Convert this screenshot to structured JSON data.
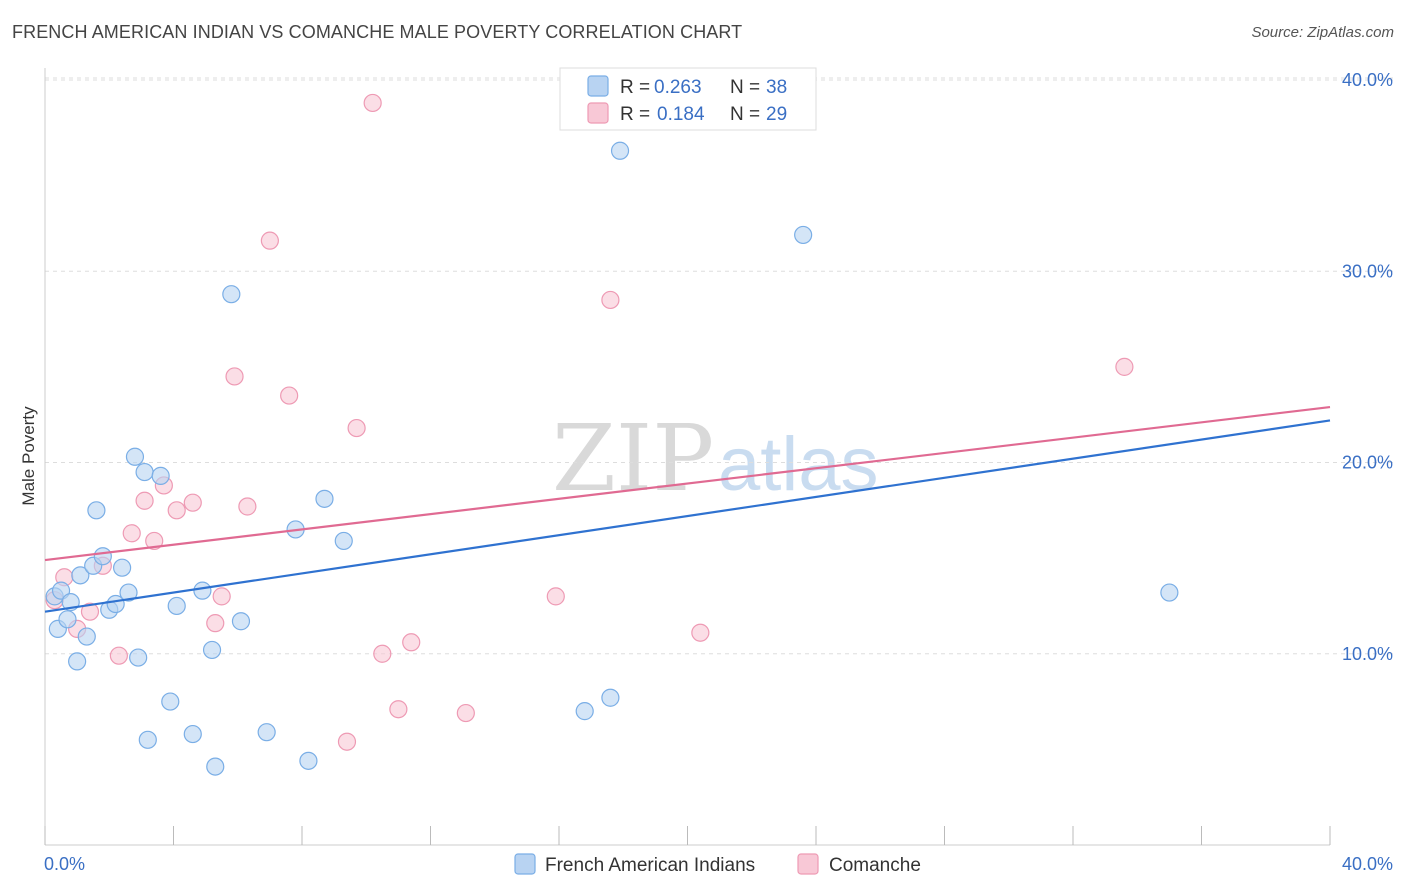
{
  "header": {
    "title": "FRENCH AMERICAN INDIAN VS COMANCHE MALE POVERTY CORRELATION CHART",
    "source": "Source: ZipAtlas.com"
  },
  "legend": {
    "series1": {
      "r_label": "R =",
      "r_value": "0.263",
      "n_label": "N =",
      "n_value": "38"
    },
    "series2": {
      "r_label": "R =",
      "r_value": "0.184",
      "n_label": "N =",
      "n_value": "29"
    }
  },
  "watermark": {
    "zip": "ZIP",
    "atlas": "atlas"
  },
  "colors": {
    "series1_fill": "#b8d3f2",
    "series1_stroke": "#7aaee6",
    "series1_line": "#2f72d0",
    "series2_fill": "#f8c8d6",
    "series2_stroke": "#ee9ab4",
    "series2_line": "#e06a92",
    "grid": "#dddddd",
    "axis_text": "#3a6fc4"
  },
  "chart_data": {
    "type": "scatter",
    "title": "FRENCH AMERICAN INDIAN VS COMANCHE MALE POVERTY CORRELATION CHART",
    "xlabel": "",
    "ylabel": "Male Poverty",
    "xlim": [
      0,
      40
    ],
    "ylim": [
      0,
      40
    ],
    "x_tick_labels": [
      "0.0%",
      "40.0%"
    ],
    "y_ticks": [
      10,
      20,
      30,
      40
    ],
    "y_tick_labels": [
      "10.0%",
      "20.0%",
      "30.0%",
      "40.0%"
    ],
    "grid": true,
    "series": [
      {
        "name": "French American Indians",
        "r": 0.263,
        "n": 38,
        "trend": {
          "x": [
            0,
            40
          ],
          "y": [
            12.2,
            22.2
          ]
        },
        "points": [
          [
            0.3,
            13.0
          ],
          [
            0.4,
            11.3
          ],
          [
            0.5,
            13.3
          ],
          [
            0.7,
            11.8
          ],
          [
            0.8,
            12.7
          ],
          [
            1.0,
            9.6
          ],
          [
            1.1,
            14.1
          ],
          [
            1.3,
            10.9
          ],
          [
            1.5,
            14.6
          ],
          [
            1.6,
            17.5
          ],
          [
            1.8,
            15.1
          ],
          [
            2.0,
            12.3
          ],
          [
            2.2,
            12.6
          ],
          [
            2.4,
            14.5
          ],
          [
            2.6,
            13.2
          ],
          [
            2.8,
            20.3
          ],
          [
            2.9,
            9.8
          ],
          [
            3.1,
            19.5
          ],
          [
            3.2,
            5.5
          ],
          [
            3.6,
            19.3
          ],
          [
            3.9,
            7.5
          ],
          [
            4.1,
            12.5
          ],
          [
            4.6,
            5.8
          ],
          [
            4.9,
            13.3
          ],
          [
            5.2,
            10.2
          ],
          [
            5.3,
            4.1
          ],
          [
            5.8,
            28.8
          ],
          [
            6.1,
            11.7
          ],
          [
            6.9,
            5.9
          ],
          [
            7.8,
            16.5
          ],
          [
            8.2,
            4.4
          ],
          [
            8.7,
            18.1
          ],
          [
            9.3,
            15.9
          ],
          [
            16.8,
            7.0
          ],
          [
            17.6,
            7.7
          ],
          [
            17.9,
            36.3
          ],
          [
            23.6,
            31.9
          ],
          [
            35.0,
            13.2
          ]
        ]
      },
      {
        "name": "Comanche",
        "r": 0.184,
        "n": 29,
        "trend": {
          "x": [
            0,
            40
          ],
          "y": [
            14.9,
            22.9
          ]
        },
        "points": [
          [
            0.3,
            12.8
          ],
          [
            0.6,
            14.0
          ],
          [
            1.0,
            11.3
          ],
          [
            1.4,
            12.2
          ],
          [
            1.8,
            14.6
          ],
          [
            2.3,
            9.9
          ],
          [
            2.7,
            16.3
          ],
          [
            3.1,
            18.0
          ],
          [
            3.4,
            15.9
          ],
          [
            3.7,
            18.8
          ],
          [
            4.1,
            17.5
          ],
          [
            4.6,
            17.9
          ],
          [
            5.3,
            11.6
          ],
          [
            5.5,
            13.0
          ],
          [
            5.9,
            24.5
          ],
          [
            6.3,
            17.7
          ],
          [
            7.0,
            31.6
          ],
          [
            7.6,
            23.5
          ],
          [
            9.4,
            5.4
          ],
          [
            9.7,
            21.8
          ],
          [
            10.2,
            38.8
          ],
          [
            10.5,
            10.0
          ],
          [
            11.0,
            7.1
          ],
          [
            11.4,
            10.6
          ],
          [
            13.1,
            6.9
          ],
          [
            15.9,
            13.0
          ],
          [
            17.6,
            28.5
          ],
          [
            20.4,
            11.1
          ],
          [
            33.6,
            25.0
          ]
        ]
      }
    ]
  }
}
